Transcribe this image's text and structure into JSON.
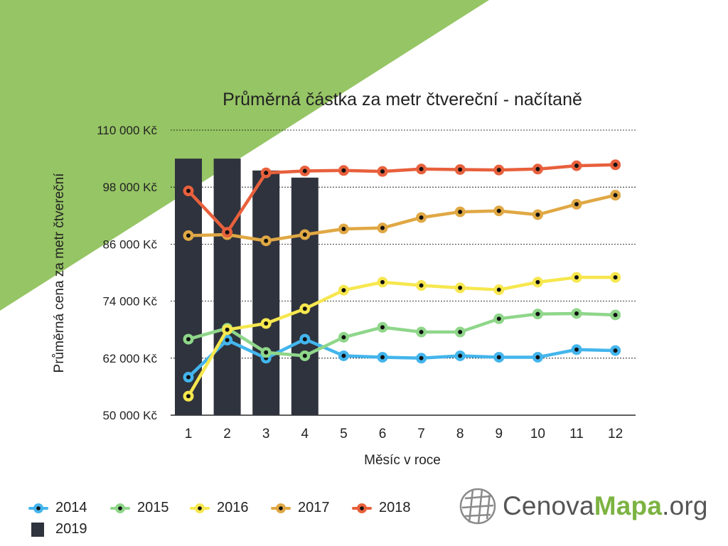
{
  "colors": {
    "background_triangle": "#96c565",
    "grid": "#000000",
    "bar": "#2f333d",
    "2014": "#43b5ec",
    "2015": "#8fd68a",
    "2016": "#f6e74e",
    "2017": "#e0a844",
    "2018": "#e8603c"
  },
  "chart_data": {
    "type": "line",
    "title": "Průměrná částka za metr čtvereční - načítaně",
    "xlabel": "Měsíc v roce",
    "ylabel": "Průměrná cena za metr čtvereční",
    "categories": [
      "1",
      "2",
      "3",
      "4",
      "5",
      "6",
      "7",
      "8",
      "9",
      "10",
      "11",
      "12"
    ],
    "ylim": [
      50000,
      110000
    ],
    "yticks": [
      50000,
      62000,
      74000,
      86000,
      98000,
      110000
    ],
    "ytick_labels": [
      "50 000 Kč",
      "62 000 Kč",
      "74 000 Kč",
      "86 000 Kč",
      "98 000 Kč",
      "110 000 Kč"
    ],
    "grid": true,
    "bars": {
      "name": "2019",
      "values": [
        104000,
        104000,
        101500,
        100000
      ]
    },
    "series": [
      {
        "name": "2014",
        "color_key": "2014",
        "values": [
          58000,
          65800,
          62000,
          66000,
          62500,
          62200,
          62000,
          62500,
          62200,
          62200,
          63800,
          63600
        ]
      },
      {
        "name": "2015",
        "color_key": "2015",
        "values": [
          66000,
          68300,
          63200,
          62500,
          66400,
          68500,
          67500,
          67500,
          70300,
          71300,
          71400,
          71100
        ]
      },
      {
        "name": "2016",
        "color_key": "2016",
        "values": [
          54000,
          68000,
          69300,
          72400,
          76300,
          78000,
          77300,
          76800,
          76400,
          78000,
          79000,
          79000
        ]
      },
      {
        "name": "2017",
        "color_key": "2017",
        "values": [
          87800,
          88000,
          86700,
          88000,
          89200,
          89400,
          91600,
          92800,
          93000,
          92200,
          94400,
          96300
        ]
      },
      {
        "name": "2018",
        "color_key": "2018",
        "values": [
          97200,
          88500,
          101000,
          101400,
          101500,
          101300,
          101800,
          101700,
          101600,
          101800,
          102500,
          102700
        ]
      }
    ]
  },
  "legend": {
    "items": [
      {
        "label": "2014",
        "color_key": "2014",
        "kind": "line"
      },
      {
        "label": "2015",
        "color_key": "2015",
        "kind": "line"
      },
      {
        "label": "2016",
        "color_key": "2016",
        "kind": "line"
      },
      {
        "label": "2017",
        "color_key": "2017",
        "kind": "line"
      },
      {
        "label": "2018",
        "color_key": "2018",
        "kind": "line"
      },
      {
        "label": "2019",
        "color_key": "bar",
        "kind": "bar"
      }
    ]
  },
  "logo": {
    "part1": "Cenova",
    "part2": "Mapa",
    "part3": ".org",
    "icon": "globe-grid-icon"
  }
}
